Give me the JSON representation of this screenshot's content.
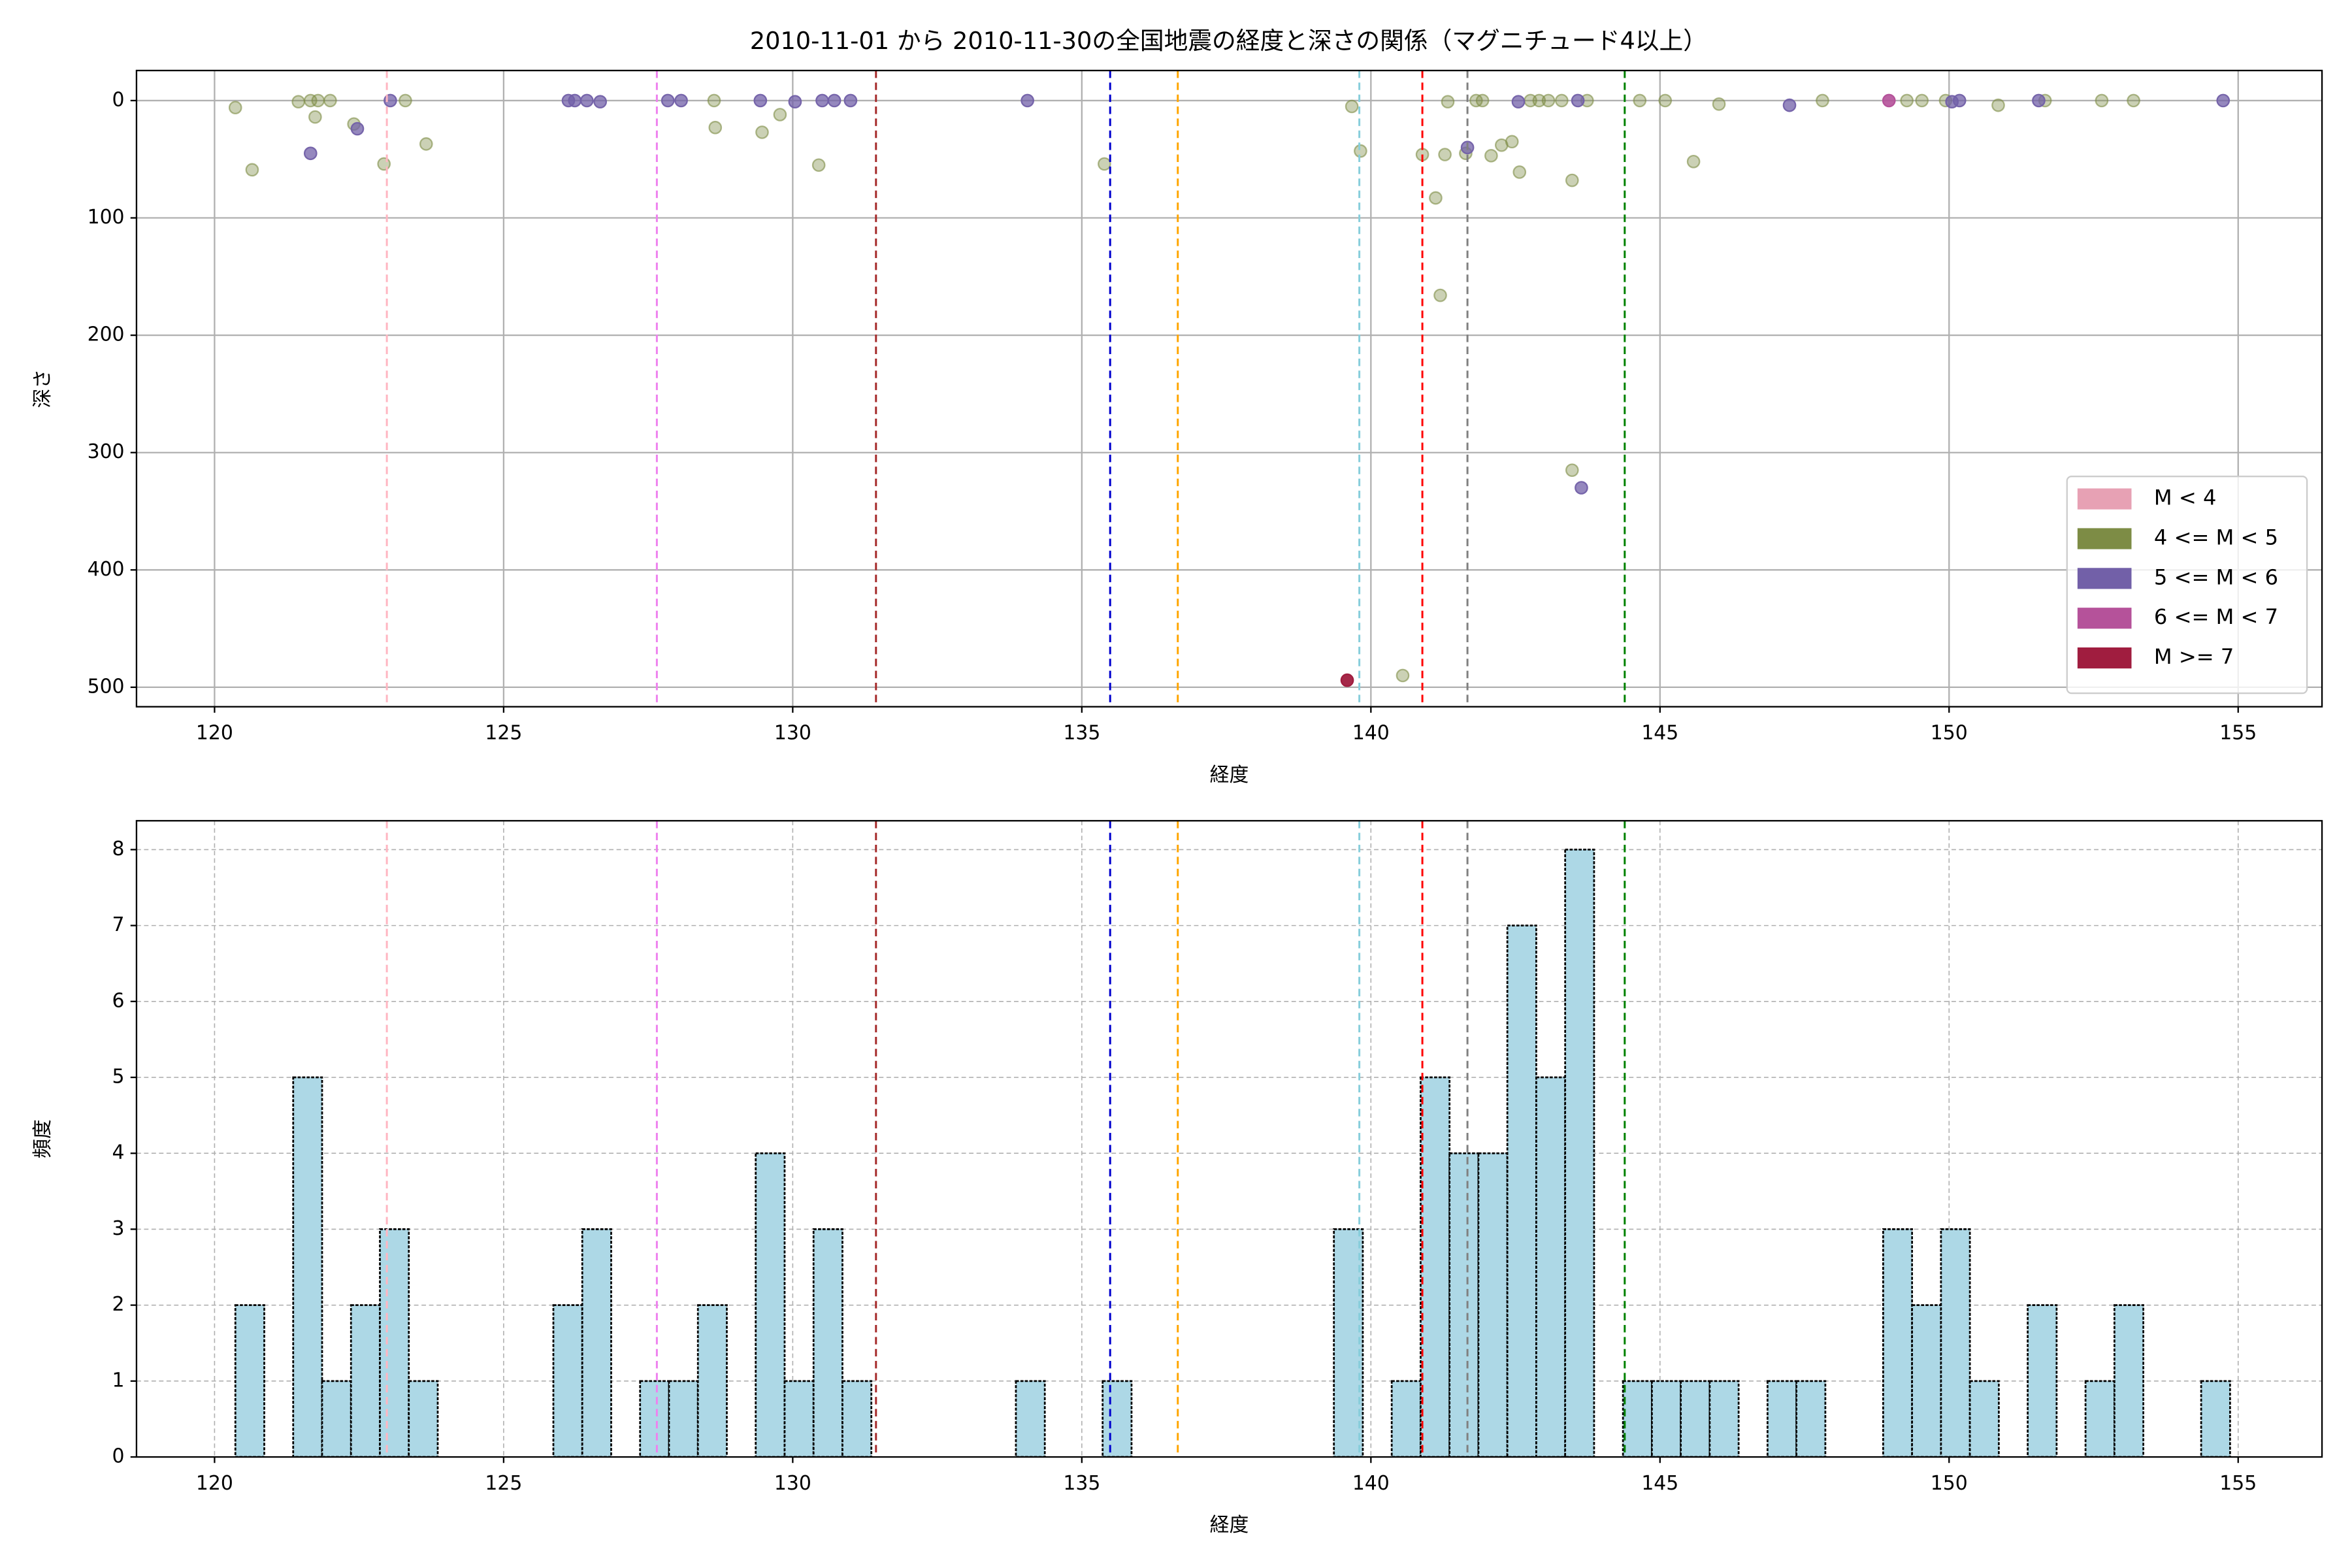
{
  "chart_data": [
    {
      "type": "scatter",
      "title": "2010-11-01 から 2010-11-30の全国地震の経度と深さの関係（マグニチュード4以上）",
      "x_label": "経度",
      "y_label": "深さ",
      "xlim": [
        118.65,
        156.45
      ],
      "ylim": [
        516.6,
        -25.6
      ],
      "xticks": [
        120,
        125,
        130,
        135,
        140,
        145,
        150,
        155
      ],
      "yticks": [
        0,
        100,
        200,
        300,
        400,
        500
      ],
      "grid": true,
      "legend": "lower right",
      "vlines": [
        {
          "x": 122.98,
          "color": "#ffb6c1"
        },
        {
          "x": 127.65,
          "color": "#ee82ee"
        },
        {
          "x": 131.44,
          "color": "#a52a2a"
        },
        {
          "x": 135.49,
          "color": "#0000cd"
        },
        {
          "x": 136.66,
          "color": "#ffa500"
        },
        {
          "x": 139.8,
          "color": "#87cedb"
        },
        {
          "x": 140.89,
          "color": "#ff0000"
        },
        {
          "x": 141.67,
          "color": "#808080"
        },
        {
          "x": 144.39,
          "color": "#008000"
        }
      ],
      "series": [
        {
          "name": "M < 4",
          "color": "#e7a1b4",
          "alpha": 0.5,
          "x": [],
          "values": []
        },
        {
          "name": "4 <= M < 5",
          "color": "#7d8c45",
          "alpha": 0.4,
          "x": [
            120.36,
            120.65,
            121.45,
            121.66,
            121.74,
            121.79,
            122.0,
            122.41,
            122.93,
            123.3,
            123.66,
            128.64,
            128.66,
            129.47,
            129.78,
            130.45,
            135.39,
            139.67,
            139.82,
            140.55,
            140.89,
            141.12,
            141.2,
            141.28,
            141.33,
            141.64,
            141.82,
            141.93,
            142.08,
            142.26,
            142.44,
            142.57,
            142.76,
            142.91,
            143.07,
            143.3,
            143.48,
            143.48,
            143.74,
            144.65,
            145.09,
            145.58,
            146.02,
            147.81,
            149.27,
            149.53,
            149.94,
            150.85,
            151.66,
            152.64,
            153.19
          ],
          "values": [
            6,
            59,
            1,
            0,
            14,
            0,
            0,
            20,
            54,
            0,
            37,
            0,
            23,
            27,
            12,
            55,
            54,
            5,
            43,
            490,
            46,
            83,
            166,
            46,
            1,
            45,
            0,
            0,
            47,
            38,
            35,
            61,
            0,
            0,
            0,
            0,
            68,
            315,
            0,
            0,
            0,
            52,
            3,
            0,
            0,
            0,
            0,
            4,
            0,
            0,
            0
          ]
        },
        {
          "name": "5 <= M < 6",
          "color": "#7260a8",
          "alpha": 0.75,
          "x": [
            121.66,
            122.47,
            123.04,
            126.12,
            126.23,
            126.44,
            126.67,
            127.84,
            128.07,
            129.44,
            130.04,
            130.51,
            130.72,
            131.0,
            134.06,
            141.67,
            142.55,
            143.58,
            143.64,
            147.24,
            150.05,
            150.18,
            151.55,
            154.74
          ],
          "values": [
            45,
            24,
            0,
            0,
            0,
            0,
            1,
            0,
            0,
            0,
            1,
            0,
            0,
            0,
            0,
            40,
            1,
            0,
            330,
            4,
            1,
            0,
            0,
            0
          ]
        },
        {
          "name": "6 <= M < 7",
          "color": "#b5529a",
          "alpha": 0.9,
          "x": [
            148.96
          ],
          "values": [
            0
          ]
        },
        {
          "name": "M >= 7",
          "color": "#a01d3f",
          "alpha": 0.95,
          "x": [
            139.59
          ],
          "values": [
            494
          ]
        }
      ]
    },
    {
      "type": "histogram",
      "x_label": "経度",
      "y_label": "頻度",
      "xlim": [
        118.65,
        156.45
      ],
      "ylim": [
        0,
        8.38
      ],
      "xticks": [
        120,
        125,
        130,
        135,
        140,
        145,
        150,
        155
      ],
      "yticks": [
        0,
        1,
        2,
        3,
        4,
        5,
        6,
        7,
        8
      ],
      "grid": true,
      "color": "#add8e6",
      "edgecolor": "#000000",
      "vlines": [
        {
          "x": 122.98,
          "color": "#ffb6c1"
        },
        {
          "x": 127.65,
          "color": "#ee82ee"
        },
        {
          "x": 131.44,
          "color": "#a52a2a"
        },
        {
          "x": 135.49,
          "color": "#0000cd"
        },
        {
          "x": 136.66,
          "color": "#ffa500"
        },
        {
          "x": 139.8,
          "color": "#87cedb"
        },
        {
          "x": 140.89,
          "color": "#ff0000"
        },
        {
          "x": 141.67,
          "color": "#808080"
        },
        {
          "x": 144.39,
          "color": "#008000"
        }
      ],
      "bins": [
        120.36,
        120.86,
        121.36,
        121.86,
        122.36,
        122.86,
        123.36,
        123.86,
        124.36,
        124.86,
        125.36,
        125.86,
        126.36,
        126.86,
        127.36,
        127.86,
        128.36,
        128.86,
        129.36,
        129.86,
        130.36,
        130.86,
        131.36,
        131.86,
        132.36,
        132.86,
        133.36,
        133.86,
        134.36,
        134.86,
        135.36,
        135.86,
        136.36,
        136.86,
        137.36,
        137.86,
        138.36,
        138.86,
        139.36,
        139.86,
        140.36,
        140.86,
        141.36,
        141.86,
        142.36,
        142.86,
        143.36,
        143.86,
        144.36,
        144.86,
        145.36,
        145.86,
        146.36,
        146.86,
        147.36,
        147.86,
        148.36,
        148.86,
        149.36,
        149.86,
        150.36,
        150.86,
        151.36,
        151.86,
        152.36,
        152.86,
        153.36,
        153.86,
        154.36,
        154.86
      ],
      "counts": [
        2,
        0,
        5,
        1,
        2,
        3,
        1,
        0,
        0,
        0,
        0,
        2,
        3,
        0,
        1,
        1,
        2,
        0,
        4,
        1,
        3,
        1,
        0,
        0,
        0,
        0,
        0,
        1,
        0,
        0,
        1,
        0,
        0,
        0,
        0,
        0,
        0,
        0,
        3,
        0,
        1,
        5,
        4,
        4,
        7,
        5,
        8,
        0,
        1,
        1,
        1,
        1,
        0,
        1,
        1,
        0,
        0,
        3,
        2,
        3,
        1,
        0,
        2,
        0,
        1,
        2,
        0,
        0,
        1
      ]
    }
  ]
}
